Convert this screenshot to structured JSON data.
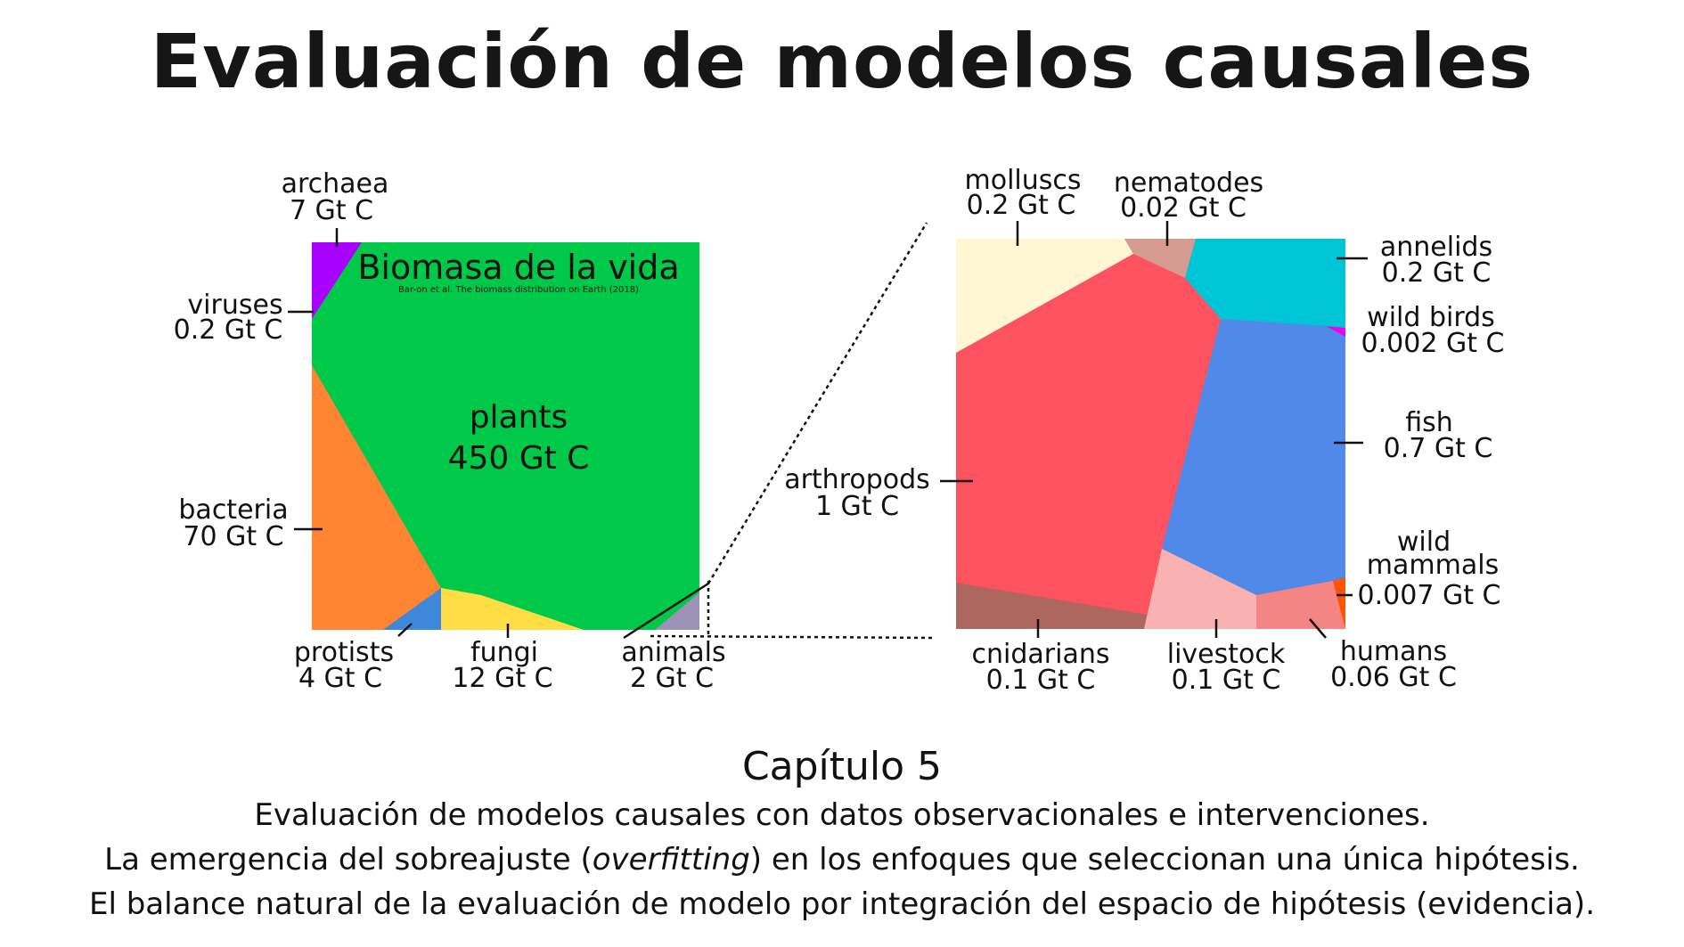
{
  "title": "Evaluación de modelos causales",
  "diagram": {
    "left_panel": {
      "heading": "Biomasa de la vida",
      "source": "Bar-on et al. The biomass distribution on Earth (2018)",
      "center_name": "plants",
      "center_value": "450 Gt C",
      "labels": {
        "archaea": [
          "archaea",
          "7 Gt C"
        ],
        "viruses": [
          "viruses",
          "0.2 Gt C"
        ],
        "bacteria": [
          "bacteria",
          "70 Gt C"
        ],
        "protists": [
          "protists",
          "4 Gt C"
        ],
        "fungi": [
          "fungi",
          "12 Gt C"
        ],
        "animals": [
          "animals",
          "2 Gt C"
        ]
      }
    },
    "right_panel": {
      "labels": {
        "molluscs": [
          "molluscs",
          "0.2 Gt C"
        ],
        "nematodes": [
          "nematodes",
          "0.02 Gt C"
        ],
        "annelids": [
          "annelids",
          "0.2 Gt C"
        ],
        "wild_birds": [
          "wild birds",
          "0.002 Gt C"
        ],
        "fish": [
          "fish",
          "0.7 Gt C"
        ],
        "arthropods": [
          "arthropods",
          "1 Gt C"
        ],
        "wild_mammals": [
          "wild",
          "mammals",
          "0.007 Gt C"
        ],
        "cnidarians": [
          "cnidarians",
          "0.1 Gt C"
        ],
        "livestock": [
          "livestock",
          "0.1 Gt C"
        ],
        "humans": [
          "humans",
          "0.06 Gt C"
        ]
      }
    },
    "colors": {
      "plants": "#00c94a",
      "archaea": "#aa00ff",
      "bacteria": "#ff8533",
      "protists": "#3f87db",
      "fungi": "#ffdd44",
      "animals": "#9c93b6",
      "molluscs": "#fff6d3",
      "nematodes": "#d59b91",
      "annelids": "#00c5d6",
      "wild_birds": "#ee00ee",
      "fish": "#5189e8",
      "arthropods": "#fd525f",
      "cnidarians": "#ad675f",
      "livestock": "#fab1b1",
      "humans": "#f58585",
      "wild_mammals": "#ff5500"
    }
  },
  "caption": {
    "chapter": "Capítulo 5",
    "line1": "Evaluación de modelos causales con datos observacionales e intervenciones.",
    "line2_before": "La emergencia del sobreajuste (",
    "line2_italic": "overfitting",
    "line2_after": ") en los enfoques que seleccionan una única hipótesis.",
    "line3": "El balance natural de la evaluación de modelo por integración del espacio de hipótesis (evidencia)."
  }
}
